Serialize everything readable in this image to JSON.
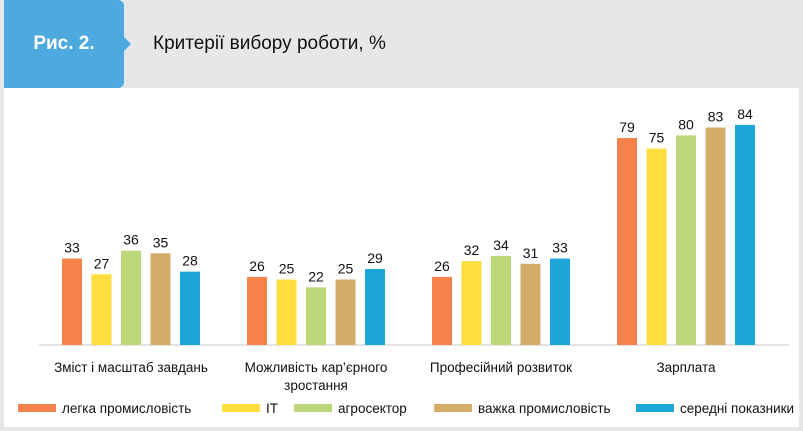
{
  "header": {
    "figure_label": "Рис. 2.",
    "title": "Критерії вибору роботи, %"
  },
  "chart_data": {
    "type": "bar",
    "title": "Критерії вибору роботи, %",
    "categories": [
      [
        "Зміст і масштаб завдань"
      ],
      [
        "Можливість кар’єрного",
        "зростання"
      ],
      [
        "Професійний розвиток"
      ],
      [
        "Зарплата"
      ]
    ],
    "series": [
      {
        "name": "легка промисловість",
        "color": "#f4824a",
        "values": [
          33,
          26,
          26,
          79
        ]
      },
      {
        "name": "IT",
        "color": "#fddd3f",
        "values": [
          27,
          25,
          32,
          75
        ]
      },
      {
        "name": "агросектор",
        "color": "#bdd87a",
        "values": [
          36,
          22,
          34,
          80
        ]
      },
      {
        "name": "важка промисловість",
        "color": "#d4ac6a",
        "values": [
          35,
          25,
          31,
          83
        ]
      },
      {
        "name": "середні показники",
        "color": "#1da6d8",
        "values": [
          28,
          29,
          33,
          84
        ]
      }
    ],
    "ylim": [
      0,
      100
    ],
    "grid": false,
    "legend": "bottom",
    "data_labels": true
  }
}
